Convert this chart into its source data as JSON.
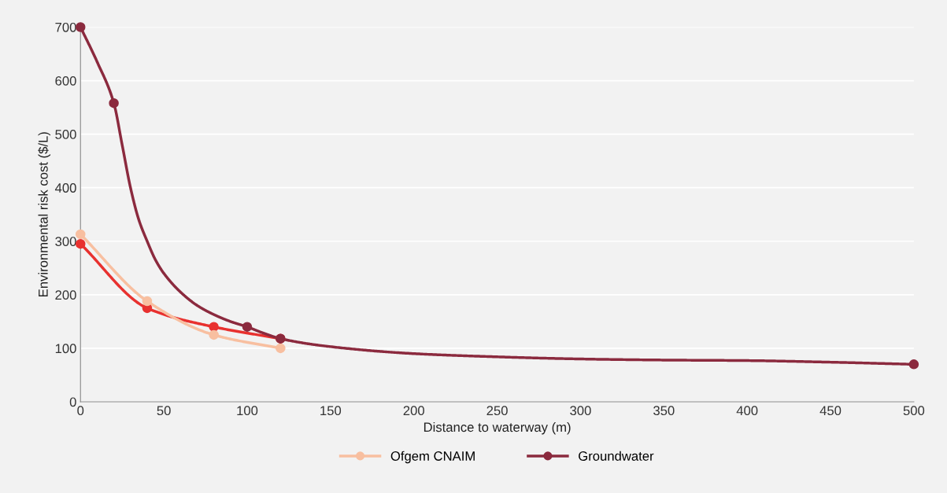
{
  "chart_data": {
    "type": "line",
    "xlabel": "Distance to waterway (m)",
    "ylabel": "Environmental risk cost ($/L)",
    "xlim": [
      0,
      500
    ],
    "xticks": [
      0,
      50,
      100,
      150,
      200,
      250,
      300,
      350,
      400,
      450,
      500
    ],
    "ylim": [
      0,
      700
    ],
    "yticks": [
      0,
      100,
      200,
      300,
      400,
      500,
      600,
      700
    ],
    "grid": "y",
    "legend": "bottom",
    "marker": "circle",
    "line_style": "solid",
    "series": [
      {
        "color": "#e8312f",
        "x": [
          0,
          40,
          80,
          120
        ],
        "values": [
          295,
          175,
          140,
          118
        ]
      },
      {
        "name": "Ofgem CNAIM",
        "color": "#f8bfa0",
        "x": [
          0,
          40,
          80,
          120
        ],
        "values": [
          313,
          188,
          125,
          100
        ]
      },
      {
        "name": "Groundwater",
        "color": "#8b2a3e",
        "marker": "none",
        "x": [
          0,
          10,
          20,
          25,
          30,
          35,
          40,
          45,
          50,
          60,
          70,
          80,
          90,
          100,
          110,
          120,
          150,
          200,
          250,
          300,
          350,
          400,
          450,
          500
        ],
        "values": [
          700,
          635,
          558,
          480,
          400,
          340,
          300,
          265,
          240,
          205,
          180,
          163,
          150,
          140,
          128,
          118,
          103,
          90,
          84,
          80,
          78,
          77,
          74,
          70
        ]
      },
      {
        "type": "scatter",
        "color": "#8b2a3e",
        "x": [
          0,
          20,
          100,
          120,
          500
        ],
        "values": [
          700,
          558,
          140,
          118,
          70
        ]
      }
    ]
  }
}
